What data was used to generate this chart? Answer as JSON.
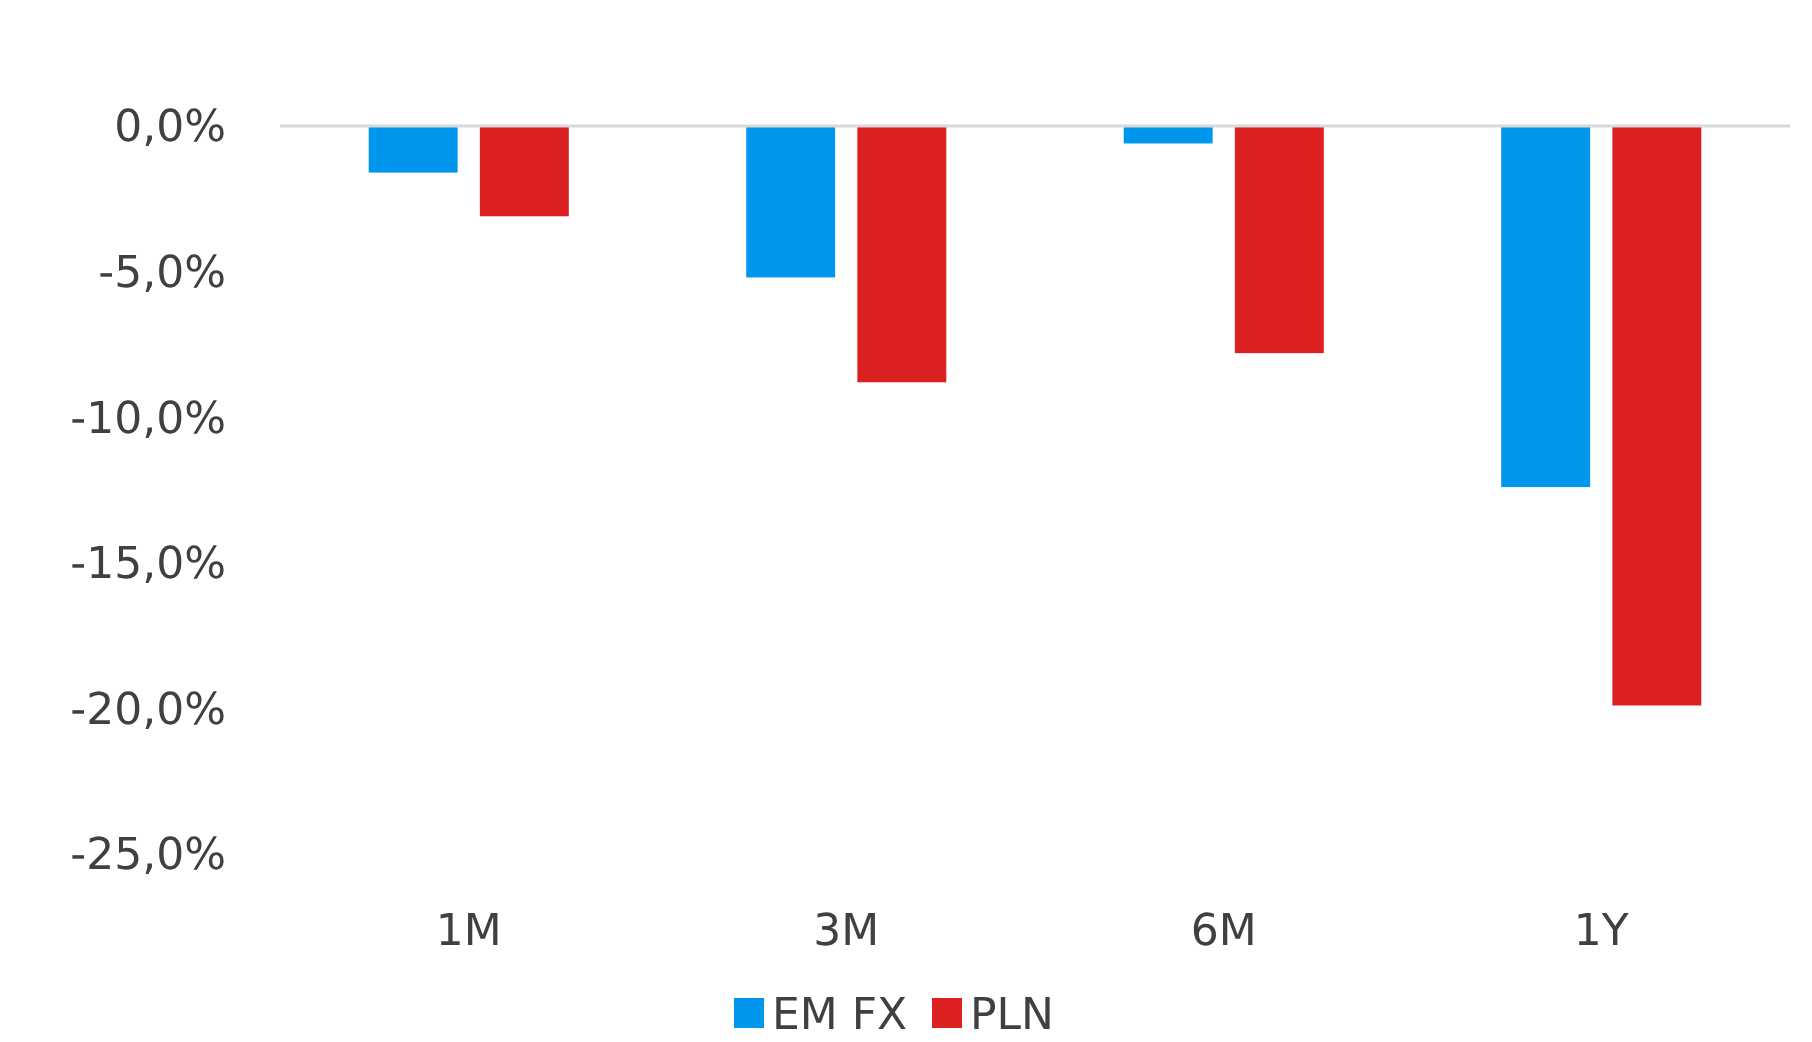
{
  "chart_data": {
    "type": "bar",
    "categories": [
      "1M",
      "3M",
      "6M",
      "1Y"
    ],
    "series": [
      {
        "name": "EM FX",
        "color": "#0096ee",
        "values": [
          -1.6,
          -5.2,
          -0.6,
          -12.4
        ]
      },
      {
        "name": "PLN",
        "color": "#dc1f1f",
        "values": [
          -3.1,
          -8.8,
          -7.8,
          -19.9
        ]
      }
    ],
    "ylim": [
      -25,
      0
    ],
    "yticks": [
      {
        "value": 0,
        "label": "0,0%"
      },
      {
        "value": -5,
        "label": "-5,0%"
      },
      {
        "value": -10,
        "label": "-10,0%"
      },
      {
        "value": -15,
        "label": "-15,0%"
      },
      {
        "value": -20,
        "label": "-20,0%"
      },
      {
        "value": -25,
        "label": "-25,0%"
      }
    ],
    "grid": false,
    "legend": "bottom"
  }
}
